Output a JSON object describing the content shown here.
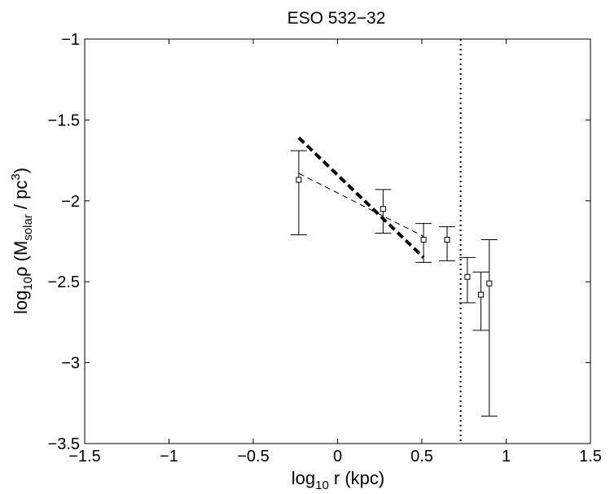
{
  "chart_data": {
    "type": "scatter",
    "title": "ESO 532−32",
    "xlabel": {
      "base": "log",
      "sub": "10",
      "rest": " r (kpc)"
    },
    "ylabel": {
      "base": "log",
      "sub": "10",
      "rho": "ρ (M",
      "sub2": "solar",
      "mid": " / pc",
      "sup": "3",
      "end": ")"
    },
    "xlim": [
      -1.5,
      1.5
    ],
    "ylim": [
      -3.5,
      -1
    ],
    "xticks": [
      -1.5,
      -1,
      -0.5,
      0,
      0.5,
      1,
      1.5
    ],
    "xtick_labels": [
      "−1.5",
      "−1",
      "−0.5",
      "0",
      "0.5",
      "1",
      "1.5"
    ],
    "yticks": [
      -3.5,
      -3,
      -2.5,
      -2,
      -1.5,
      -1
    ],
    "ytick_labels": [
      "−3.5",
      "−3",
      "−2.5",
      "−2",
      "−1.5",
      "−1"
    ],
    "grid": false,
    "points": [
      {
        "x": -0.23,
        "y": -1.87,
        "ylow": -2.21,
        "yhigh": -1.69
      },
      {
        "x": 0.27,
        "y": -2.05,
        "ylow": -2.2,
        "yhigh": -1.93
      },
      {
        "x": 0.51,
        "y": -2.24,
        "ylow": -2.38,
        "yhigh": -2.14
      },
      {
        "x": 0.65,
        "y": -2.24,
        "ylow": -2.37,
        "yhigh": -2.16
      },
      {
        "x": 0.77,
        "y": -2.47,
        "ylow": -2.63,
        "yhigh": -2.35
      },
      {
        "x": 0.85,
        "y": -2.58,
        "ylow": -2.8,
        "yhigh": -2.44
      },
      {
        "x": 0.9,
        "y": -2.51,
        "ylow": -3.33,
        "yhigh": -2.24
      }
    ],
    "fit_lines": [
      {
        "style": "thick-dashed",
        "x": [
          -0.23,
          0.51
        ],
        "y": [
          -1.61,
          -2.35
        ]
      },
      {
        "style": "thin-dashed",
        "x": [
          -0.23,
          0.51
        ],
        "y": [
          -1.83,
          -2.22
        ]
      }
    ],
    "vline": {
      "x": 0.73,
      "style": "dotted"
    }
  }
}
